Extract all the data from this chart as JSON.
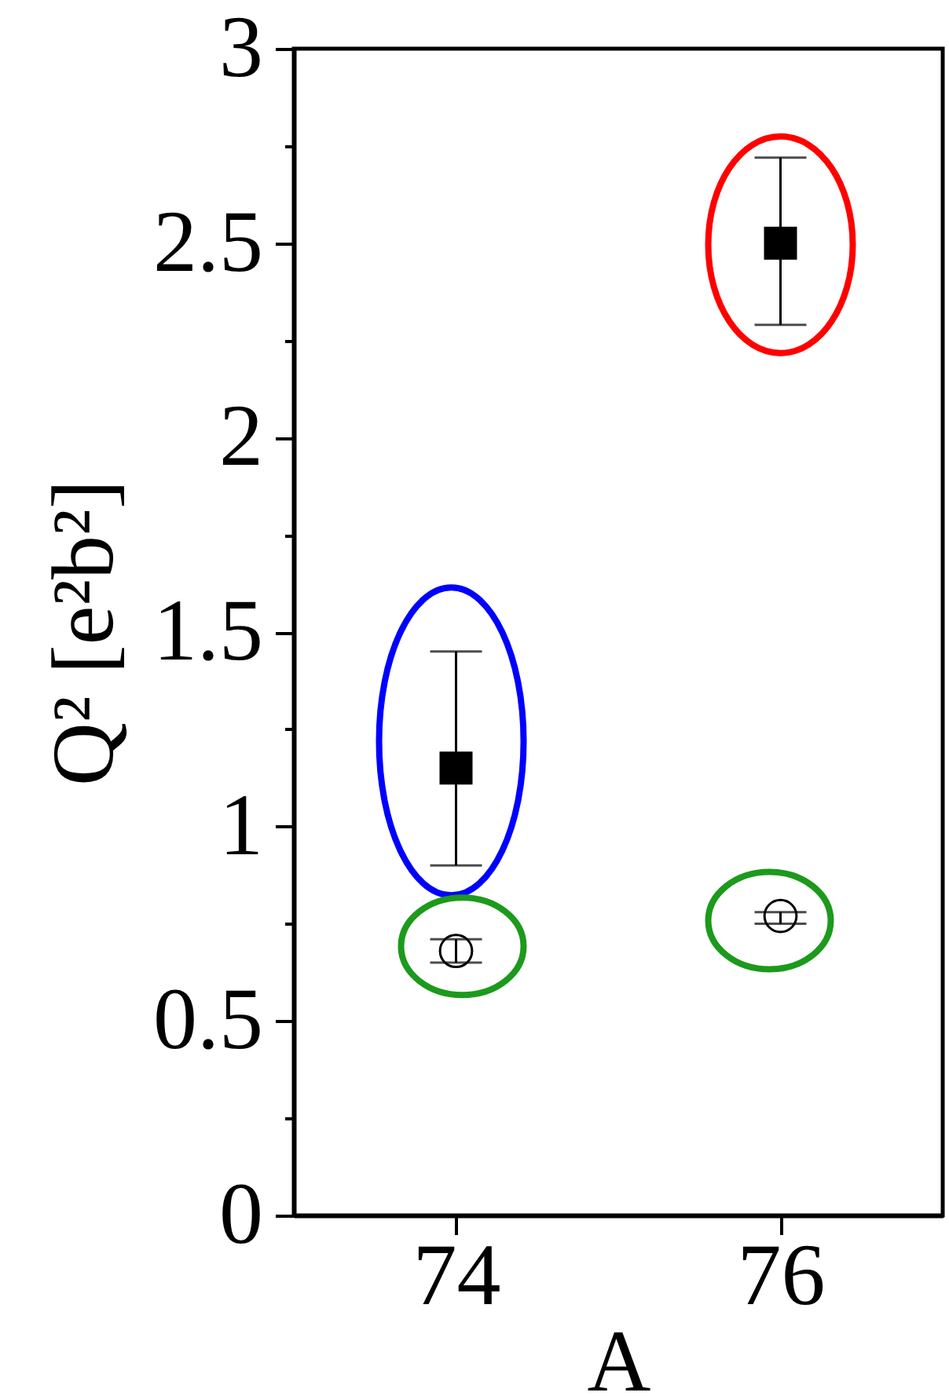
{
  "chart_data": {
    "type": "scatter",
    "xlabel": "A",
    "ylabel": "Q² [e²b²]",
    "x": [
      74,
      76
    ],
    "xlim": [
      73,
      77
    ],
    "xticks": [
      74,
      76
    ],
    "ylim": [
      0,
      3
    ],
    "yticks": [
      0,
      {
        "value": 0.25,
        "label": null
      },
      0.5,
      {
        "value": 0.75,
        "label": null
      },
      1,
      {
        "value": 1.25,
        "label": null
      },
      1.5,
      {
        "value": 1.75,
        "label": null
      },
      2,
      {
        "value": 2.25,
        "label": null
      },
      2.5,
      {
        "value": 2.75,
        "label": null
      },
      3
    ],
    "series": [
      {
        "color": "#000000",
        "marker": "square",
        "values": [
          1.15,
          2.5
        ],
        "errors": [
          [
            0.9,
            1.45
          ],
          [
            2.29,
            2.72
          ]
        ]
      },
      {
        "color": "#000000",
        "marker": "circle",
        "values": [
          0.68,
          0.77
        ],
        "errors": [
          [
            0.65,
            0.71
          ],
          [
            0.75,
            0.78
          ]
        ]
      }
    ]
  }
}
